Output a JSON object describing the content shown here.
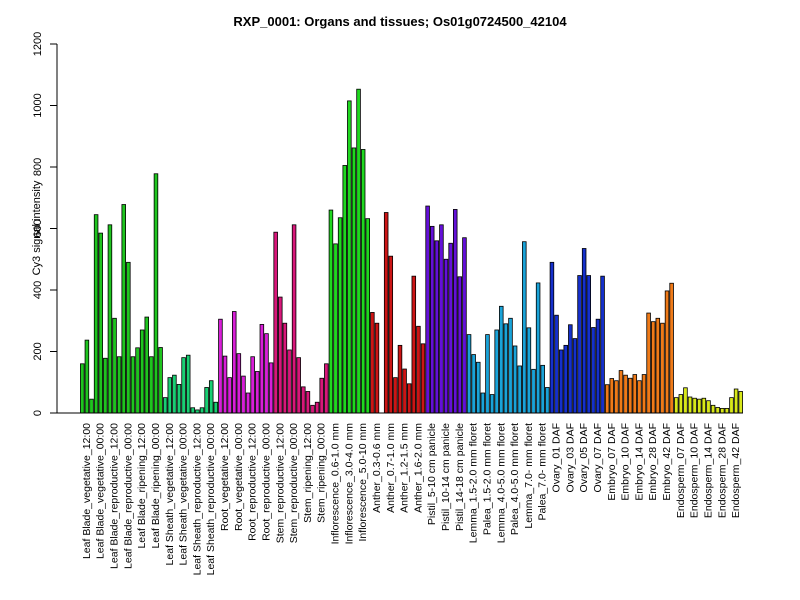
{
  "chart_data": {
    "type": "bar",
    "title": "RXP_0001: Organs and tissues; Os01g0724500_42104",
    "xlabel": "",
    "ylabel": "Cy3 signal intensity",
    "ylim": [
      0,
      1200
    ],
    "yticks": [
      0,
      200,
      400,
      600,
      800,
      1000,
      1200
    ],
    "grid": false,
    "legend": "none",
    "groups": [
      {
        "label": "Leaf Blade_vegetative_12:00",
        "color": "#1fc41f",
        "values": [
          160,
          237,
          45
        ]
      },
      {
        "label": "Leaf Blade_vegetative_00:00",
        "color": "#1fc41f",
        "values": [
          645,
          585,
          178
        ]
      },
      {
        "label": "Leaf Blade_reproductive_12:00",
        "color": "#1fc41f",
        "values": [
          612,
          308,
          183
        ]
      },
      {
        "label": "Leaf Blade_reproductive_00:00",
        "color": "#1fc41f",
        "values": [
          678,
          490,
          183
        ]
      },
      {
        "label": "Leaf Blade_ripening_12:00",
        "color": "#1fc41f",
        "values": [
          212,
          270,
          312
        ]
      },
      {
        "label": "Leaf Blade_ripening_00:00",
        "color": "#1fc41f",
        "values": [
          183,
          778,
          213
        ]
      },
      {
        "label": "Leaf Sheath_vegetative_12:00",
        "color": "#19cf73",
        "values": [
          50,
          115,
          123
        ]
      },
      {
        "label": "Leaf Sheath_vegetative_00:00",
        "color": "#19cf73",
        "values": [
          93,
          180,
          188
        ]
      },
      {
        "label": "Leaf Sheath_reproductive_12:00",
        "color": "#19cf73",
        "values": [
          17,
          10,
          17
        ]
      },
      {
        "label": "Leaf Sheath_reproductive_00:00",
        "color": "#19cf73",
        "values": [
          83,
          105,
          35
        ]
      },
      {
        "label": "Root_vegetative_12:00",
        "color": "#d81fd8",
        "values": [
          305,
          185,
          115
        ]
      },
      {
        "label": "Root_vegetative_00:00",
        "color": "#d81fd8",
        "values": [
          330,
          193,
          120
        ]
      },
      {
        "label": "Root_reproductive_12:00",
        "color": "#d81fd8",
        "values": [
          65,
          183,
          135
        ]
      },
      {
        "label": "Root_reproductive_00:00",
        "color": "#d81fd8",
        "values": [
          288,
          258,
          163
        ]
      },
      {
        "label": "Stem_reproductive_12:00",
        "color": "#d8177a",
        "values": [
          588,
          377,
          292
        ]
      },
      {
        "label": "Stem_reproductive_00:00",
        "color": "#d8177a",
        "values": [
          205,
          612,
          180
        ]
      },
      {
        "label": "Stem_ripening_12:00",
        "color": "#d8177a",
        "values": [
          85,
          70,
          25
        ]
      },
      {
        "label": "Stem_ripening_00:00",
        "color": "#d8177a",
        "values": [
          35,
          113,
          160
        ]
      },
      {
        "label": "Inflorescence_0.6-1.0 mm",
        "color": "#1fd81f",
        "values": [
          660,
          550,
          635
        ]
      },
      {
        "label": "Inflorescence_3.0-4.0 mm",
        "color": "#1fd81f",
        "values": [
          805,
          1015,
          862
        ]
      },
      {
        "label": "Inflorescence_5.0-10 mm",
        "color": "#1fd81f",
        "values": [
          1053,
          857,
          632
        ]
      },
      {
        "label": "Anther_0.3-0.6 mm",
        "color": "#cc1515",
        "values": [
          327,
          292
        ]
      },
      {
        "label": "Anther_0.7-1.0 mm",
        "color": "#cc1515",
        "values": [
          652,
          510,
          115
        ]
      },
      {
        "label": "Anther_1.2-1.5 mm",
        "color": "#cc1515",
        "values": [
          220,
          143,
          95
        ]
      },
      {
        "label": "Anther_1.6-2.0 mm",
        "color": "#cc1515",
        "values": [
          445,
          282,
          225
        ]
      },
      {
        "label": "Pistil_5-10 cm panicle",
        "color": "#6410d8",
        "values": [
          673,
          607,
          560
        ]
      },
      {
        "label": "Pistil_10-14 cm panicle",
        "color": "#6410d8",
        "values": [
          612,
          500,
          552
        ]
      },
      {
        "label": "Pistil_14-18 cm panicle",
        "color": "#6410d8",
        "values": [
          662,
          443,
          570
        ]
      },
      {
        "label": "Lemma_1.5-2.0 mm floret",
        "color": "#1aa3d8",
        "values": [
          255,
          190,
          165
        ]
      },
      {
        "label": "Palea_1.5-2.0 mm floret",
        "color": "#1aa3d8",
        "values": [
          65,
          255,
          60
        ]
      },
      {
        "label": "Lemma_4.0-5.0 mm floret",
        "color": "#1aa3d8",
        "values": [
          270,
          347,
          290
        ]
      },
      {
        "label": "Palea_4.0-5.0 mm floret",
        "color": "#1aa3d8",
        "values": [
          308,
          218,
          153
        ]
      },
      {
        "label": "Lemma_7.0- mm floret",
        "color": "#1aa3d8",
        "values": [
          557,
          277,
          142
        ]
      },
      {
        "label": "Palea_7.0- mm floret",
        "color": "#1aa3d8",
        "values": [
          423,
          155,
          83
        ]
      },
      {
        "label": "Ovary_01 DAF",
        "color": "#1530cc",
        "values": [
          490,
          318,
          205
        ]
      },
      {
        "label": "Ovary_03 DAF",
        "color": "#1530cc",
        "values": [
          220,
          287,
          242
        ]
      },
      {
        "label": "Ovary_05 DAF",
        "color": "#1530cc",
        "values": [
          447,
          535,
          447
        ]
      },
      {
        "label": "Ovary_07 DAF",
        "color": "#1530cc",
        "values": [
          278,
          305,
          445
        ]
      },
      {
        "label": "Embryo_07 DAF",
        "color": "#ef7a18",
        "values": [
          92,
          112,
          105
        ]
      },
      {
        "label": "Embryo_10 DAF",
        "color": "#ef7a18",
        "values": [
          138,
          123,
          113
        ]
      },
      {
        "label": "Embryo_14 DAF",
        "color": "#ef7a18",
        "values": [
          125,
          105,
          125
        ]
      },
      {
        "label": "Embryo_28 DAF",
        "color": "#ef7a18",
        "values": [
          325,
          297,
          308
        ]
      },
      {
        "label": "Embryo_42 DAF",
        "color": "#ef7a18",
        "values": [
          292,
          397,
          422
        ]
      },
      {
        "label": "Endosperm_07 DAF",
        "color": "#d8e81a",
        "values": [
          50,
          60,
          82
        ]
      },
      {
        "label": "Endosperm_10 DAF",
        "color": "#d8e81a",
        "values": [
          52,
          48,
          45
        ]
      },
      {
        "label": "Endosperm_14 DAF",
        "color": "#d8e81a",
        "values": [
          48,
          40,
          25
        ]
      },
      {
        "label": "Endosperm_28 DAF",
        "color": "#d8e81a",
        "values": [
          18,
          15,
          15
        ]
      },
      {
        "label": "Endosperm_42 DAF",
        "color": "#d8e81a",
        "values": [
          50,
          78,
          70
        ]
      }
    ]
  }
}
